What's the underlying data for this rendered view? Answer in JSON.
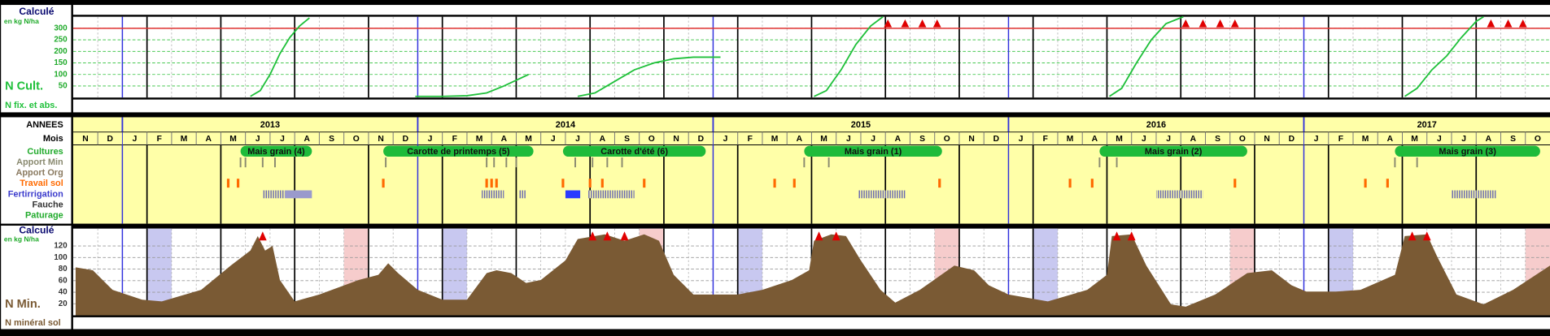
{
  "months": [
    "N",
    "D",
    "J",
    "F",
    "M",
    "A",
    "M",
    "J",
    "J",
    "A",
    "S",
    "O",
    "N",
    "D",
    "J",
    "F",
    "M",
    "A",
    "M",
    "J",
    "J",
    "A",
    "S",
    "O",
    "N",
    "D",
    "J",
    "F",
    "M",
    "A",
    "M",
    "J",
    "J",
    "A",
    "S",
    "O",
    "N",
    "D",
    "J",
    "F",
    "M",
    "A",
    "M",
    "J",
    "J",
    "A",
    "S",
    "O",
    "N",
    "D",
    "J",
    "F",
    "M",
    "A",
    "M",
    "J",
    "J",
    "A",
    "S",
    "O"
  ],
  "years": [
    "2013",
    "2014",
    "2015",
    "2016",
    "2017"
  ],
  "timeline": {
    "header": "ANNEES",
    "month_header": "Mois",
    "rows": [
      {
        "label": "Cultures",
        "color": "#1faa2a"
      },
      {
        "label": "Apport Min",
        "color": "#8a8a70"
      },
      {
        "label": "Apport Org",
        "color": "#8a7a60"
      },
      {
        "label": "Travail sol",
        "color": "#ff6a00"
      },
      {
        "label": "Fertirrigation",
        "color": "#3a3acc"
      },
      {
        "label": "Fauche",
        "color": "#333333"
      },
      {
        "label": "Paturage",
        "color": "#1faa2a"
      }
    ],
    "crop_color": "#1fbb3a",
    "crops": [
      {
        "label": "Mais grain (4)",
        "start": 6.8,
        "end": 9.7
      },
      {
        "label": "Carotte de printemps (5)",
        "start": 12.6,
        "end": 18.7
      },
      {
        "label": "Carotte d'été (6)",
        "start": 19.9,
        "end": 25.7
      },
      {
        "label": "Mais grain (1)",
        "start": 29.7,
        "end": 35.3
      },
      {
        "label": "Mais grain (2)",
        "start": 41.7,
        "end": 47.7
      },
      {
        "label": "Mais grain (3)",
        "start": 53.7,
        "end": 59.6
      }
    ],
    "apport_min": [
      6.8,
      7.0,
      7.7,
      8.2,
      12.7,
      16.8,
      17.1,
      17.6,
      18.0,
      20.4,
      21.1,
      21.7,
      22.3,
      29.7,
      30.7,
      41.7,
      42.4,
      53.7,
      54.6
    ],
    "travail_sol": [
      6.3,
      6.7,
      12.6,
      16.8,
      17.0,
      17.2,
      19.9,
      21.0,
      21.5,
      23.2,
      28.5,
      29.3,
      35.2,
      40.5,
      41.4,
      47.2,
      52.5,
      53.4
    ],
    "fertirrigation": [
      {
        "start": 7.7,
        "end": 8.6,
        "color": "#6a6ab0",
        "pattern": "hatch"
      },
      {
        "start": 8.6,
        "end": 9.7,
        "color": "#9a9acc",
        "pattern": "solid"
      },
      {
        "start": 16.6,
        "end": 17.5,
        "color": "#6a6ab0",
        "pattern": "hatch"
      },
      {
        "start": 18.1,
        "end": 18.4,
        "color": "#6a6ab0",
        "pattern": "hatch"
      },
      {
        "start": 20.0,
        "end": 20.6,
        "color": "#2a3aff",
        "pattern": "solid"
      },
      {
        "start": 20.9,
        "end": 22.8,
        "color": "#6a6ab0",
        "pattern": "hatch"
      },
      {
        "start": 31.9,
        "end": 33.8,
        "color": "#6a6ab0",
        "pattern": "hatch"
      },
      {
        "start": 44.0,
        "end": 45.9,
        "color": "#6a6ab0",
        "pattern": "hatch"
      },
      {
        "start": 56.0,
        "end": 57.8,
        "color": "#6a6ab0",
        "pattern": "hatch"
      }
    ]
  },
  "chart_data": [
    {
      "type": "line",
      "title": "Calculé",
      "subtitle": "en kg N/ha",
      "ylabel": "N Cult.",
      "footer": "N fix. et abs.",
      "xlim": [
        0,
        60
      ],
      "ylim": [
        0,
        350
      ],
      "yticks": [
        50,
        100,
        150,
        200,
        250,
        300
      ],
      "threshold": 300,
      "threshold_color": "#e03030",
      "marker_color": "#e00000",
      "marker_x": [
        33.1,
        33.8,
        34.5,
        35.1,
        45.2,
        45.9,
        46.6,
        47.2,
        57.6,
        58.3,
        58.9
      ],
      "series": [
        {
          "color": "#1fc03a",
          "x": [
            7.2,
            7.6,
            8.0,
            8.4,
            8.8,
            9.2,
            9.6
          ],
          "values": [
            5,
            30,
            100,
            190,
            260,
            310,
            345
          ]
        },
        {
          "color": "#1fc03a",
          "x": [
            13.9,
            15.0,
            16.0,
            16.8,
            17.5,
            18.5
          ],
          "values": [
            5,
            5,
            8,
            20,
            50,
            100
          ]
        },
        {
          "color": "#1fc03a",
          "x": [
            20.5,
            21.2,
            22.0,
            22.8,
            23.6,
            24.4,
            25.2,
            26.3
          ],
          "values": [
            5,
            20,
            70,
            120,
            150,
            168,
            175,
            175
          ]
        },
        {
          "color": "#1fc03a",
          "x": [
            30.1,
            30.6,
            31.2,
            31.8,
            32.4,
            32.9
          ],
          "values": [
            5,
            30,
            120,
            230,
            310,
            350
          ]
        },
        {
          "color": "#1fc03a",
          "x": [
            42.1,
            42.6,
            43.2,
            43.8,
            44.4,
            45.1
          ],
          "values": [
            5,
            40,
            150,
            250,
            320,
            350
          ]
        },
        {
          "color": "#1fc03a",
          "x": [
            54.1,
            54.6,
            55.2,
            55.8,
            56.4,
            57.0,
            57.3
          ],
          "values": [
            5,
            40,
            120,
            180,
            260,
            330,
            350
          ]
        }
      ]
    },
    {
      "type": "area",
      "title": "Calculé",
      "subtitle": "en kg N/ha",
      "ylabel": "N Min.",
      "footer": "N minéral sol",
      "xlim": [
        0,
        60
      ],
      "ylim": [
        0,
        150
      ],
      "yticks": [
        20,
        40,
        60,
        80,
        100,
        120
      ],
      "color": "#7a5a34",
      "marker_color": "#e00000",
      "marker_x": [
        7.7,
        21.1,
        21.7,
        22.4,
        30.3,
        31.0,
        42.4,
        43.0,
        54.4,
        55.0
      ],
      "blue_bands": [
        3,
        15,
        27,
        39,
        51
      ],
      "pink_bands": [
        11,
        23,
        35,
        47,
        59
      ],
      "x": [
        0.1,
        0.8,
        1.6,
        2.8,
        3.6,
        5.2,
        6.4,
        7.2,
        7.5,
        7.8,
        8.1,
        8.4,
        9.0,
        10.0,
        11.6,
        12.4,
        12.8,
        13.2,
        14.0,
        15.0,
        16.0,
        16.8,
        17.2,
        17.8,
        18.4,
        19.0,
        20.0,
        20.5,
        21.6,
        22.4,
        23.2,
        23.8,
        24.4,
        25.2,
        26.0,
        27.0,
        28.0,
        29.2,
        29.9,
        30.1,
        30.8,
        31.4,
        32.0,
        32.8,
        33.4,
        34.4,
        35.8,
        36.6,
        37.2,
        38.0,
        39.6,
        41.2,
        42.0,
        42.2,
        43.0,
        43.6,
        44.6,
        45.2,
        46.4,
        47.7,
        48.7,
        49.5,
        50.1,
        51.3,
        52.3,
        53.7,
        54.1,
        55.0,
        55.4,
        56.2,
        57.3,
        58.5,
        60.0
      ],
      "values": [
        83,
        78,
        44,
        27,
        24,
        44,
        86,
        112,
        137,
        112,
        120,
        61,
        24,
        36,
        61,
        70,
        90,
        73,
        44,
        27,
        27,
        73,
        78,
        73,
        56,
        61,
        95,
        132,
        140,
        129,
        140,
        129,
        70,
        36,
        36,
        36,
        44,
        61,
        78,
        129,
        140,
        137,
        95,
        44,
        22,
        44,
        86,
        78,
        52,
        36,
        24,
        44,
        70,
        137,
        140,
        86,
        19,
        15,
        36,
        73,
        78,
        52,
        41,
        41,
        44,
        70,
        137,
        140,
        103,
        36,
        19,
        44,
        86
      ]
    }
  ]
}
